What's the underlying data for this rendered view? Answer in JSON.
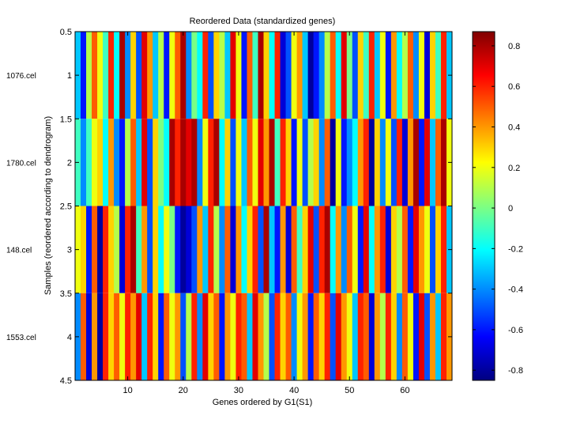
{
  "chart_data": {
    "type": "heatmap",
    "title": "Reordered Data (standardized genes)",
    "xlabel": "Genes ordered by G1(S1)",
    "ylabel": "Samples (reordered according to dendrogram)",
    "xlim": [
      0.5,
      68.5
    ],
    "ylim": [
      0.5,
      4.5
    ],
    "y_axis_reversed": true,
    "x_ticks": [
      "10",
      "20",
      "30",
      "40",
      "50",
      "60"
    ],
    "y_ticks": [
      "0.5",
      "1",
      "1.5",
      "2",
      "2.5",
      "3",
      "3.5",
      "4",
      "4.5"
    ],
    "row_labels": [
      "1076.cel",
      "1780.cel",
      "148.cel",
      "1553.cel"
    ],
    "colormap": "jet",
    "color_range": [
      -0.85,
      0.87
    ],
    "colorbar_ticks": [
      "0.8",
      "0.6",
      "0.4",
      "0.2",
      "0",
      "-0.2",
      "-0.4",
      "-0.6",
      "-0.8"
    ],
    "values": [
      [
        -0.3,
        -0.6,
        0.1,
        0.5,
        0.2,
        -0.1,
        0.6,
        -0.2,
        0.8,
        -0.4,
        0.3,
        -0.5,
        0.7,
        0.4,
        -0.3,
        0.1,
        -0.6,
        0.2,
        0.5,
        0.8,
        -0.4,
        0.0,
        -0.2,
        0.6,
        -0.5,
        0.3,
        0.1,
        -0.3,
        0.7,
        0.2,
        -0.6,
        0.5,
        -0.1,
        0.8,
        0.3,
        -0.2,
        0.6,
        -0.7,
        -0.5,
        0.2,
        0.4,
        -0.3,
        -0.8,
        -0.6,
        -0.4,
        0.1,
        0.5,
        -0.2,
        0.7,
        0.0,
        -0.5,
        0.3,
        -0.1,
        0.6,
        -0.3,
        0.2,
        -0.6,
        0.4,
        -0.2,
        0.1,
        0.5,
        -0.4,
        0.2,
        -0.7,
        0.3,
        -0.1,
        0.6,
        -0.3
      ],
      [
        -0.1,
        -0.4,
        -0.1,
        0.2,
        0.3,
        -0.2,
        0.4,
        -0.4,
        -0.6,
        0.1,
        0.5,
        -0.3,
        0.7,
        -0.5,
        0.3,
        0.0,
        -0.2,
        0.8,
        0.6,
        0.8,
        0.7,
        0.8,
        -0.4,
        0.2,
        0.6,
        0.8,
        -0.2,
        0.3,
        -0.5,
        0.2,
        -0.3,
        0.5,
        0.2,
        0.7,
        0.4,
        0.8,
        -0.1,
        0.6,
        0.3,
        -0.6,
        0.2,
        -0.5,
        0.1,
        0.3,
        -0.4,
        0.5,
        -0.8,
        0.2,
        -0.6,
        -0.4,
        -0.2,
        0.4,
        0.6,
        -0.8,
        0.3,
        -0.4,
        0.2,
        -0.5,
        0.6,
        -0.7,
        0.4,
        0.8,
        -0.6,
        0.7,
        -0.3,
        0.5,
        0.8,
        0.2
      ],
      [
        0.2,
        0.3,
        -0.6,
        0.5,
        -0.8,
        0.6,
        0.3,
        0.1,
        -0.7,
        0.6,
        0.8,
        -0.1,
        0.4,
        -0.5,
        0.3,
        -0.2,
        0.2,
        0.0,
        -0.6,
        -0.8,
        -0.7,
        -0.5,
        0.4,
        -0.3,
        0.6,
        0.1,
        -0.4,
        0.5,
        -0.7,
        0.4,
        -0.2,
        0.3,
        0.6,
        -0.5,
        0.8,
        -0.3,
        -0.6,
        0.4,
        -0.7,
        0.5,
        -0.1,
        0.3,
        0.7,
        -0.5,
        0.6,
        0.8,
        -0.2,
        0.4,
        -0.4,
        0.5,
        0.2,
        -0.6,
        0.7,
        -0.2,
        0.4,
        0.6,
        -0.7,
        0.3,
        0.1,
        0.5,
        -0.6,
        0.7,
        0.4,
        0.2,
        -0.5,
        0.3,
        0.6,
        -0.3
      ],
      [
        -0.4,
        0.5,
        -0.7,
        0.4,
        -0.8,
        0.6,
        0.3,
        0.5,
        0.2,
        0.6,
        0.4,
        0.7,
        -0.3,
        0.6,
        0.3,
        -0.6,
        0.5,
        0.2,
        0.4,
        -0.5,
        0.1,
        0.6,
        -0.4,
        0.7,
        0.3,
        0.5,
        -0.6,
        0.4,
        0.2,
        0.6,
        0.5,
        -0.3,
        0.7,
        0.4,
        0.1,
        -0.5,
        0.6,
        0.3,
        0.5,
        -0.4,
        0.2,
        0.4,
        -0.6,
        0.5,
        0.3,
        0.6,
        -0.5,
        0.7,
        0.4,
        0.2,
        -0.3,
        0.6,
        0.5,
        -0.7,
        0.4,
        0.1,
        0.6,
        0.3,
        -0.4,
        0.5,
        0.2,
        -0.6,
        0.7,
        -0.5,
        0.4,
        -0.3,
        0.6,
        0.4
      ]
    ]
  }
}
